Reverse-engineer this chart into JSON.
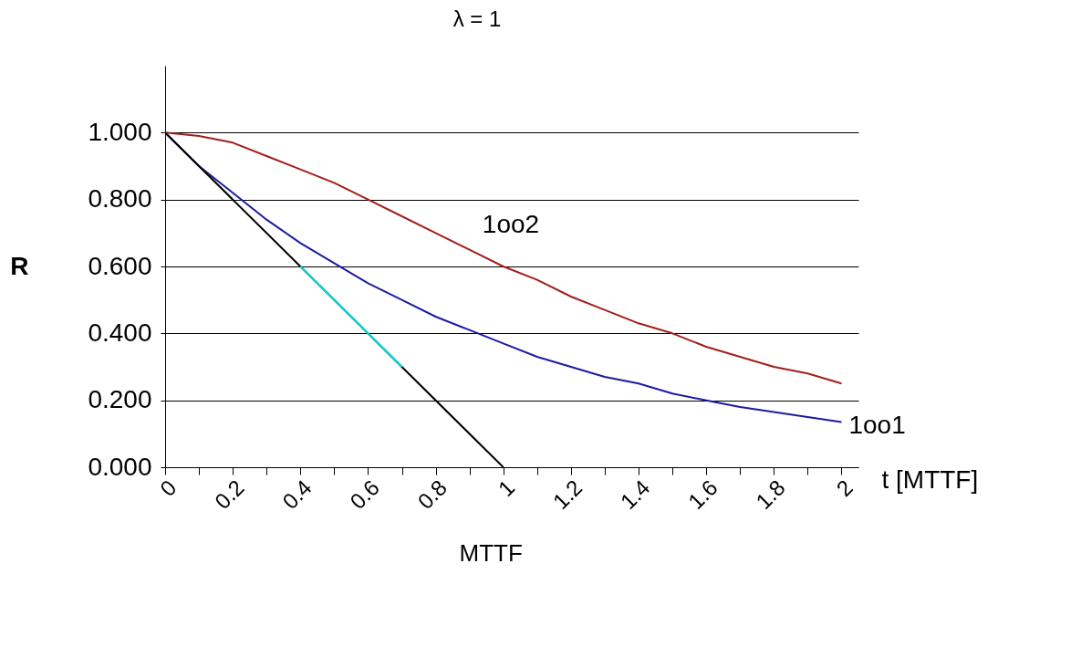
{
  "chart_data": {
    "type": "line",
    "xlabel": "t [MTTF]",
    "ylabel": "R",
    "annotations": [
      "λ = 1",
      "MTTF"
    ],
    "x": [
      0,
      0.1,
      0.2,
      0.3,
      0.4,
      0.5,
      0.6,
      0.7,
      0.8,
      0.9,
      1,
      1.1,
      1.2,
      1.3,
      1.4,
      1.5,
      1.6,
      1.7,
      1.8,
      1.9,
      2
    ],
    "series": [
      {
        "name": "1oo2",
        "color": "#a0201c",
        "values": [
          1,
          0.99,
          0.97,
          0.93,
          0.89,
          0.85,
          0.8,
          0.75,
          0.7,
          0.65,
          0.6,
          0.56,
          0.51,
          0.47,
          0.43,
          0.4,
          0.36,
          0.33,
          0.3,
          0.28,
          0.25
        ]
      },
      {
        "name": "1oo1",
        "color": "#1c1ca0",
        "values": [
          1,
          0.9,
          0.82,
          0.74,
          0.67,
          0.61,
          0.55,
          0.5,
          0.45,
          0.41,
          0.37,
          0.33,
          0.3,
          0.27,
          0.25,
          0.22,
          0.2,
          0.18,
          0.165,
          0.15,
          0.135
        ]
      },
      {
        "color": "#000000",
        "x": [
          0,
          1
        ],
        "values": [
          1,
          0
        ]
      },
      {
        "color": "#00e0e0",
        "x": [
          0.4,
          0.7
        ],
        "values": [
          0.6,
          0.3
        ]
      }
    ],
    "xlim": [
      0,
      2.05
    ],
    "ylim": [
      0,
      1.2
    ],
    "xticks": [
      0,
      {
        "value": 0.1,
        "label": null
      },
      0.2,
      {
        "value": 0.3,
        "label": null
      },
      0.4,
      {
        "value": 0.5,
        "label": null
      },
      0.6,
      {
        "value": 0.7,
        "label": null
      },
      0.8,
      {
        "value": 0.9,
        "label": null
      },
      1,
      {
        "value": 1.1,
        "label": null
      },
      1.2,
      {
        "value": 1.3,
        "label": null
      },
      1.4,
      {
        "value": 1.5,
        "label": null
      },
      1.6,
      {
        "value": 1.7,
        "label": null
      },
      1.8,
      {
        "value": 1.9,
        "label": null
      },
      2
    ],
    "yticks": [
      {
        "value": 0,
        "label": "0.000"
      },
      {
        "value": 0.2,
        "label": "0.200"
      },
      {
        "value": 0.4,
        "label": "0.400"
      },
      {
        "value": 0.6,
        "label": "0.600"
      },
      {
        "value": 0.8,
        "label": "0.800"
      },
      {
        "value": 1,
        "label": "1.000"
      }
    ],
    "grid": "y"
  }
}
